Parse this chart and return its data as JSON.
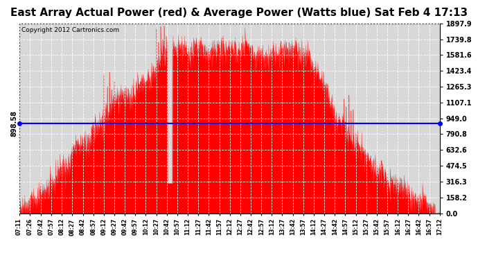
{
  "title": "East Array Actual Power (red) & Average Power (Watts blue) Sat Feb 4 17:13",
  "copyright": "Copyright 2012 Cartronics.com",
  "ymax": 1897.9,
  "ymin": 0.0,
  "yticks": [
    0.0,
    158.2,
    316.3,
    474.5,
    632.6,
    790.8,
    949.0,
    1107.1,
    1265.3,
    1423.4,
    1581.6,
    1739.8,
    1897.9
  ],
  "avg_power": 898.58,
  "avg_label": "898.58",
  "title_fontsize": 11,
  "copyright_fontsize": 6.5,
  "background_color": "#ffffff",
  "plot_bg_color": "#d8d8d8",
  "fill_color": "#ff0000",
  "line_color": "#0000ff",
  "x_start_minutes": 431,
  "x_end_minutes": 1032,
  "x_tick_labels": [
    "07:11",
    "07:26",
    "07:42",
    "07:57",
    "08:12",
    "08:27",
    "08:42",
    "08:57",
    "09:12",
    "09:27",
    "09:42",
    "09:57",
    "10:12",
    "10:27",
    "10:42",
    "10:57",
    "11:12",
    "11:27",
    "11:42",
    "11:57",
    "12:12",
    "12:27",
    "12:42",
    "12:57",
    "13:12",
    "13:27",
    "13:42",
    "13:57",
    "14:12",
    "14:27",
    "14:42",
    "14:57",
    "15:12",
    "15:27",
    "15:42",
    "15:57",
    "16:12",
    "16:27",
    "16:42",
    "16:57",
    "17:12"
  ],
  "x_tick_minutes": [
    431,
    446,
    462,
    477,
    492,
    507,
    522,
    537,
    552,
    567,
    582,
    597,
    612,
    627,
    642,
    657,
    672,
    687,
    702,
    717,
    732,
    747,
    762,
    777,
    792,
    807,
    822,
    837,
    852,
    867,
    882,
    897,
    912,
    927,
    942,
    957,
    972,
    987,
    1002,
    1017,
    1032
  ]
}
